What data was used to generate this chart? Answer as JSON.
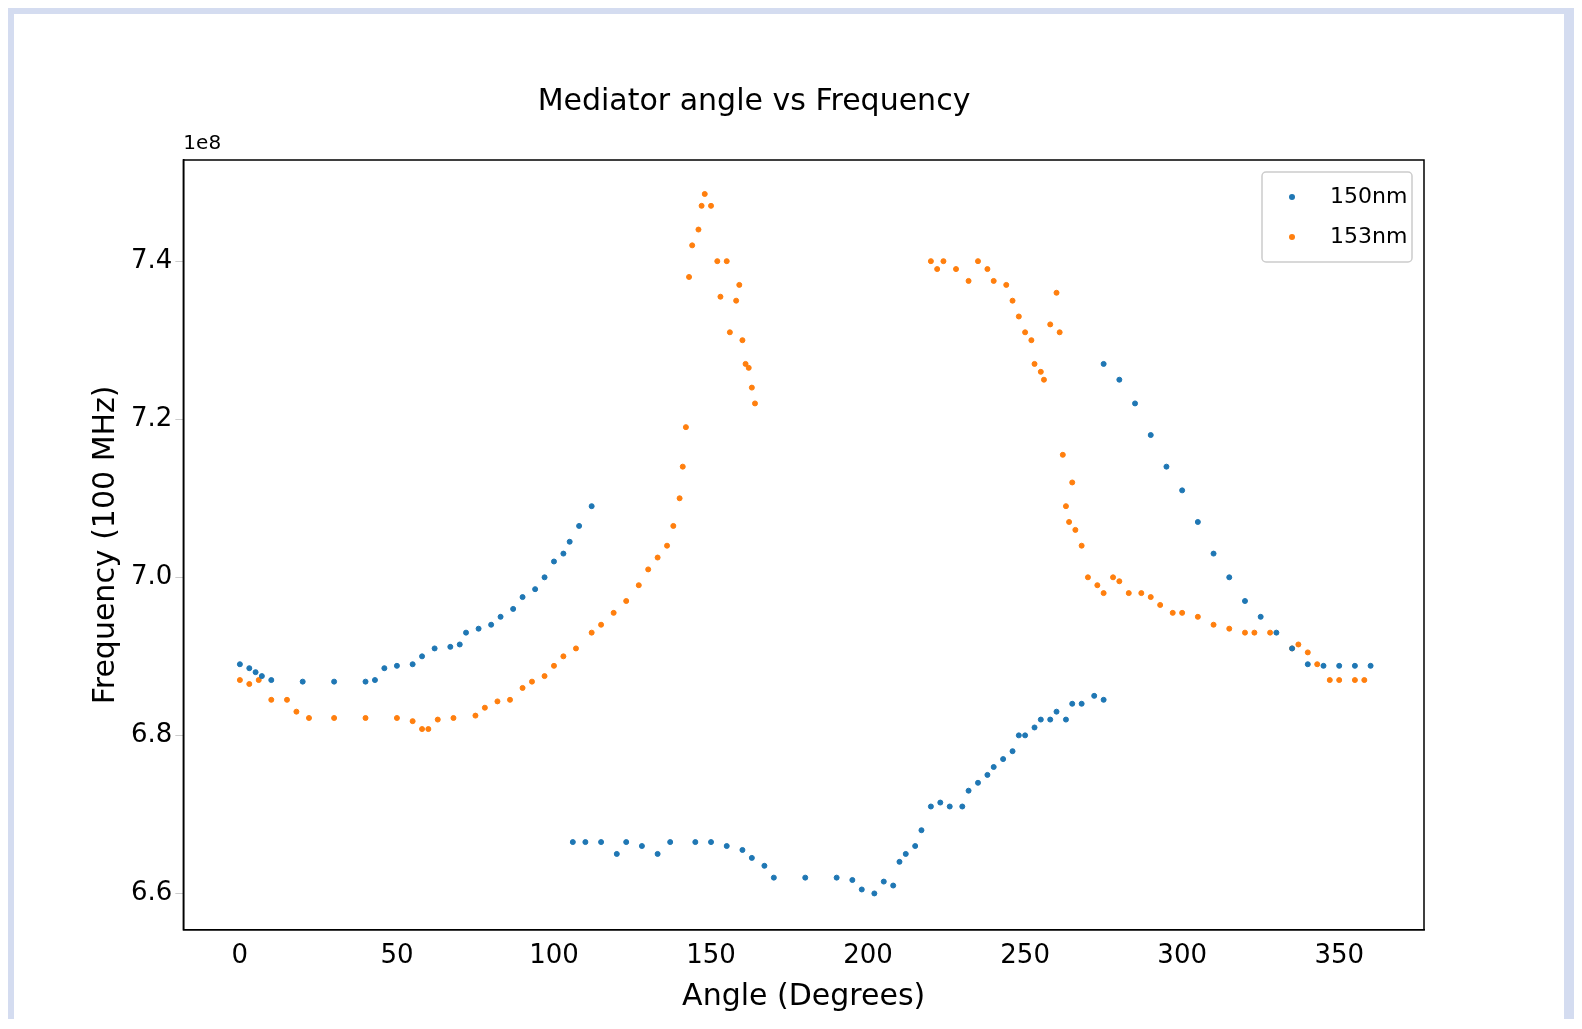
{
  "chart_data": {
    "type": "scatter",
    "title": "Mediator angle vs Frequency",
    "xlabel": "Angle (Degrees)",
    "ylabel": "Frequency (100 MHz)",
    "annotations": [
      "1e8"
    ],
    "xlim": [
      -18,
      377
    ],
    "ylim": [
      6.554,
      7.528
    ],
    "xticks": [
      0,
      50,
      100,
      150,
      200,
      250,
      300,
      350
    ],
    "yticks": [
      6.6,
      6.8,
      {
        "value": 7,
        "label": "7.0"
      },
      7.2,
      7.4
    ],
    "grid": false,
    "legend": "top right",
    "marker": "circle",
    "series": [
      {
        "name": "150nm",
        "color": "#1f77b4",
        "x": [
          0,
          3,
          5,
          7,
          10,
          20,
          30,
          40,
          43,
          46,
          50,
          55,
          58,
          62,
          67,
          70,
          72,
          76,
          80,
          83,
          87,
          90,
          94,
          97,
          100,
          103,
          105,
          108,
          112,
          106,
          110,
          115,
          120,
          123,
          128,
          133,
          137,
          145,
          150,
          155,
          160,
          163,
          167,
          170,
          180,
          190,
          195,
          198,
          202,
          205,
          208,
          210,
          212,
          215,
          217,
          220,
          223,
          226,
          230,
          232,
          235,
          238,
          240,
          243,
          246,
          248,
          250,
          253,
          255,
          258,
          260,
          263,
          265,
          268,
          272,
          275,
          275,
          280,
          285,
          290,
          295,
          300,
          305,
          310,
          315,
          320,
          325,
          330,
          335,
          340,
          345,
          350,
          355,
          360
        ],
        "values": [
          6.89,
          6.885,
          6.88,
          6.875,
          6.87,
          6.868,
          6.868,
          6.868,
          6.87,
          6.885,
          6.888,
          6.89,
          6.9,
          6.91,
          6.912,
          6.915,
          6.93,
          6.935,
          6.94,
          6.95,
          6.96,
          6.975,
          6.985,
          7.0,
          7.02,
          7.03,
          7.045,
          7.065,
          7.09,
          6.665,
          6.665,
          6.665,
          6.65,
          6.665,
          6.66,
          6.65,
          6.665,
          6.665,
          6.665,
          6.66,
          6.655,
          6.645,
          6.635,
          6.62,
          6.62,
          6.62,
          6.617,
          6.605,
          6.6,
          6.615,
          6.61,
          6.64,
          6.65,
          6.66,
          6.68,
          6.71,
          6.715,
          6.71,
          6.71,
          6.73,
          6.74,
          6.75,
          6.76,
          6.77,
          6.78,
          6.8,
          6.8,
          6.81,
          6.82,
          6.82,
          6.83,
          6.82,
          6.84,
          6.84,
          6.85,
          6.845,
          7.27,
          7.25,
          7.22,
          7.18,
          7.14,
          7.11,
          7.07,
          7.03,
          7.0,
          6.97,
          6.95,
          6.93,
          6.91,
          6.89,
          6.888,
          6.888,
          6.888,
          6.888
        ]
      },
      {
        "name": "153nm",
        "color": "#ff7f0e",
        "x": [
          0,
          3,
          6,
          10,
          15,
          18,
          22,
          30,
          40,
          50,
          55,
          58,
          60,
          63,
          68,
          75,
          78,
          82,
          86,
          90,
          93,
          97,
          100,
          103,
          107,
          112,
          115,
          119,
          123,
          127,
          130,
          133,
          136,
          138,
          140,
          141,
          142,
          143,
          144,
          146,
          147,
          148,
          150,
          152,
          153,
          155,
          156,
          158,
          159,
          160,
          161,
          162,
          163,
          164,
          220,
          222,
          224,
          228,
          232,
          235,
          238,
          240,
          244,
          246,
          248,
          250,
          252,
          253,
          255,
          256,
          258,
          260,
          261,
          262,
          263,
          264,
          265,
          266,
          268,
          270,
          273,
          275,
          278,
          280,
          283,
          287,
          290,
          293,
          297,
          300,
          305,
          310,
          315,
          320,
          323,
          328,
          337,
          335,
          340,
          343,
          347,
          350,
          355,
          358
        ],
        "values": [
          6.87,
          6.865,
          6.87,
          6.845,
          6.845,
          6.83,
          6.822,
          6.822,
          6.822,
          6.822,
          6.818,
          6.808,
          6.808,
          6.82,
          6.822,
          6.825,
          6.835,
          6.843,
          6.845,
          6.86,
          6.868,
          6.875,
          6.888,
          6.9,
          6.91,
          6.93,
          6.94,
          6.955,
          6.97,
          6.99,
          7.01,
          7.025,
          7.04,
          7.065,
          7.1,
          7.14,
          7.19,
          7.38,
          7.42,
          7.44,
          7.47,
          7.485,
          7.47,
          7.4,
          7.355,
          7.4,
          7.31,
          7.35,
          7.37,
          7.3,
          7.27,
          7.265,
          7.24,
          7.22,
          7.4,
          7.39,
          7.4,
          7.39,
          7.375,
          7.4,
          7.39,
          7.375,
          7.37,
          7.35,
          7.33,
          7.31,
          7.3,
          7.27,
          7.26,
          7.25,
          7.32,
          7.36,
          7.31,
          7.155,
          7.09,
          7.07,
          7.12,
          7.06,
          7.04,
          7.0,
          6.99,
          6.98,
          7.0,
          6.995,
          6.98,
          6.98,
          6.975,
          6.965,
          6.955,
          6.955,
          6.95,
          6.94,
          6.935,
          6.93,
          6.93,
          6.93,
          6.915,
          6.91,
          6.905,
          6.89,
          6.87,
          6.87,
          6.87,
          6.87
        ]
      }
    ]
  }
}
